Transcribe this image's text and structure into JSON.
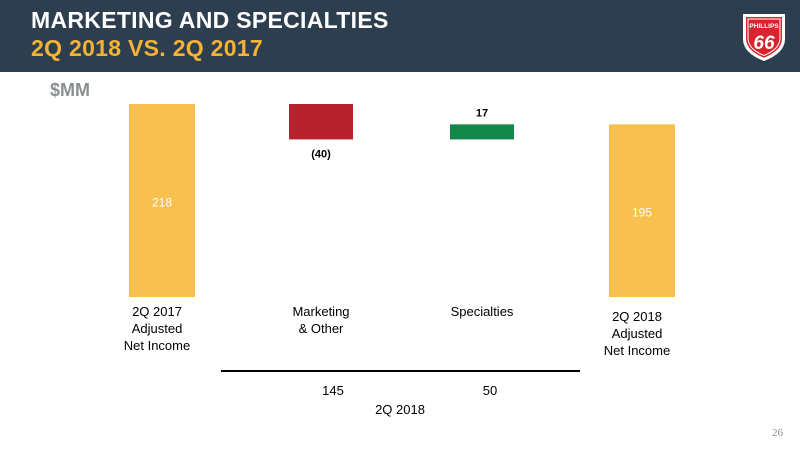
{
  "header": {
    "title_line1": "MARKETING AND SPECIALTIES",
    "title_line2": "2Q 2018 VS. 2Q 2017",
    "background_color": "#2d3e4e",
    "title2_color": "#f5b335",
    "logo": {
      "line1": "PHILLIPS",
      "line2": "66"
    }
  },
  "page_number": "26",
  "chart_data": {
    "type": "bar",
    "variant": "waterfall",
    "unit_label": "$MM",
    "categories": [
      [
        "2Q 2017",
        "Adjusted",
        "Net Income"
      ],
      [
        "Marketing",
        "& Other"
      ],
      [
        "Specialties"
      ],
      [
        "2Q 2018",
        "Adjusted",
        "Net Income"
      ]
    ],
    "values": [
      218,
      -40,
      17,
      195
    ],
    "data_labels": [
      "218",
      "(40)",
      "17",
      "195"
    ],
    "bar_kinds": [
      "total",
      "delta",
      "delta",
      "total"
    ],
    "colors": {
      "total": "#f8c04f",
      "negative": "#b8212e",
      "positive": "#14874b",
      "total_label": "#ffffff",
      "label": "#000000"
    },
    "group": {
      "label": "2Q 2018",
      "sub_values": [
        "145",
        "50"
      ]
    },
    "grid": false,
    "legend": "none"
  }
}
